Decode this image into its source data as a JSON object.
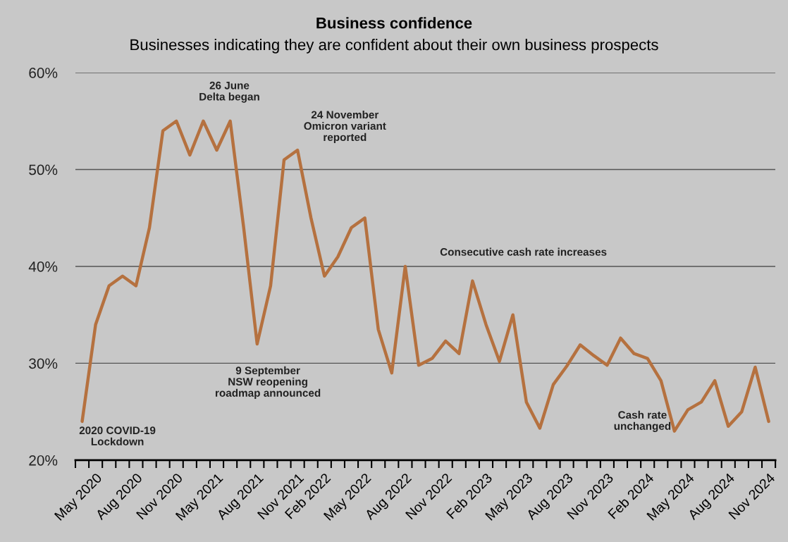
{
  "chart_data": {
    "type": "line",
    "title": "Business confidence",
    "subtitle": "Businesses indicating they are confident about their own business prospects",
    "categories": [
      null,
      "May 2020",
      null,
      null,
      "Aug 2020",
      null,
      null,
      "Nov 2020",
      null,
      null,
      "May 2021",
      null,
      null,
      "Aug 2021",
      null,
      null,
      "Nov 2021",
      null,
      "Feb 2022",
      null,
      null,
      "May 2022",
      null,
      null,
      "Aug 2022",
      null,
      null,
      "Nov 2022",
      null,
      null,
      "Feb 2023",
      null,
      null,
      "May 2023",
      null,
      null,
      "Aug 2023",
      null,
      null,
      "Nov 2023",
      null,
      null,
      "Feb 2024",
      null,
      null,
      "May 2024",
      null,
      null,
      "Aug 2024",
      null,
      null,
      "Nov 2024"
    ],
    "series": [
      {
        "color": "#b5713f",
        "values": [
          24,
          34,
          38,
          39,
          38,
          44,
          54,
          55,
          51.5,
          55,
          52,
          55,
          44,
          32,
          38,
          51,
          52,
          45,
          39,
          41,
          44,
          45,
          33.5,
          29,
          40,
          29.8,
          30.5,
          32.3,
          31,
          38.5,
          34,
          30.2,
          35,
          26,
          23.3,
          27.8,
          29.7,
          31.9,
          30.8,
          29.8,
          32.6,
          31,
          30.5,
          28.2,
          23,
          25.2,
          26,
          28.2,
          23.5,
          25,
          29.6,
          24
        ]
      }
    ],
    "ylim": [
      20,
      60
    ],
    "yticks": [
      {
        "value": 20,
        "label": "20%"
      },
      {
        "value": 30,
        "label": "30%"
      },
      {
        "value": 40,
        "label": "40%"
      },
      {
        "value": 50,
        "label": "50%"
      },
      {
        "value": 60,
        "label": "60%"
      }
    ],
    "grid": "y",
    "legend": false,
    "marker": "none",
    "line_style": "solid",
    "annotations": [
      "2020 COVID-19\nLockdown",
      "26 June\nDelta began",
      "9 September\nNSW reopening\nroadmap announced",
      "24 November\nOmicron variant\nreported",
      "Consecutive cash rate increases",
      "Cash rate\nunchanged"
    ]
  }
}
